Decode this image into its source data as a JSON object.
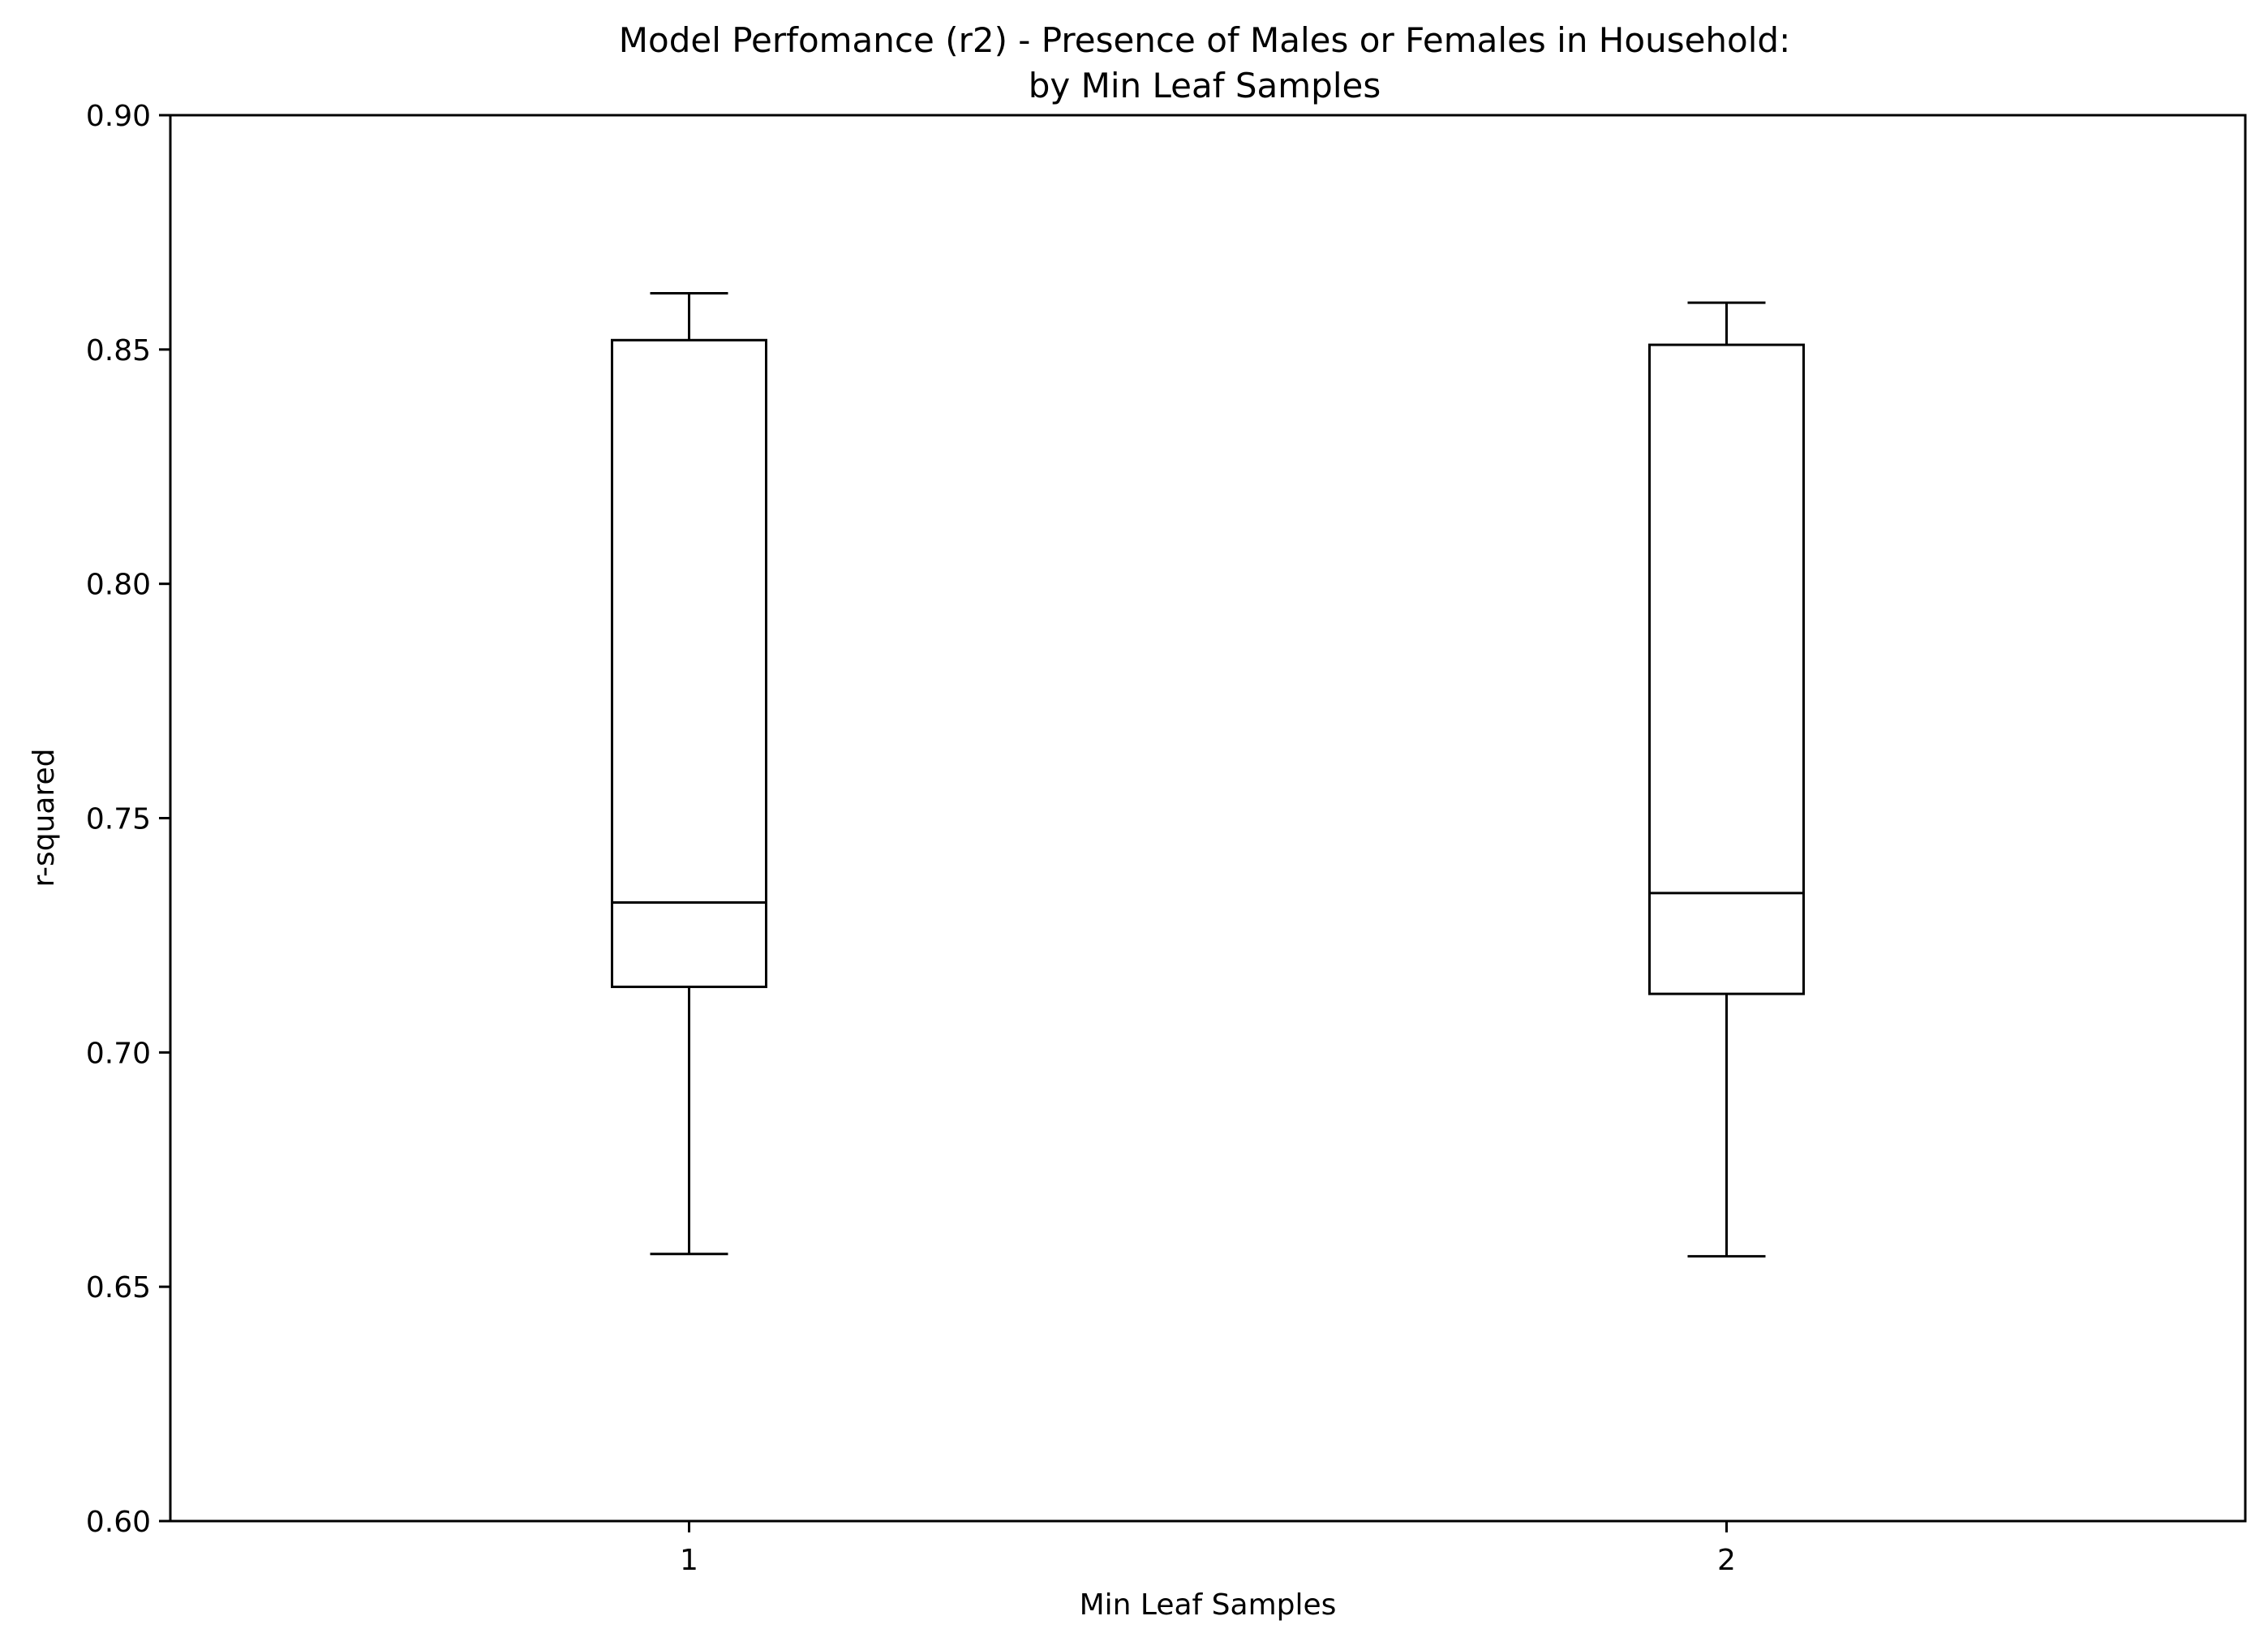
{
  "chart_data": {
    "type": "box",
    "title_line1": "Model Perfomance (r2) - Presence of Males or Females in Household:",
    "title_line2": "by Min Leaf Samples",
    "xlabel": "Min Leaf Samples",
    "ylabel": "r-squared",
    "ylim": [
      0.6,
      0.9
    ],
    "yticks": [
      0.6,
      0.65,
      0.7,
      0.75,
      0.8,
      0.85,
      0.9
    ],
    "ytick_labels": [
      "0.60",
      "0.65",
      "0.70",
      "0.75",
      "0.80",
      "0.85",
      "0.90"
    ],
    "categories": [
      "1",
      "2"
    ],
    "boxes": [
      {
        "category": "1",
        "whisker_low": 0.657,
        "q1": 0.714,
        "median": 0.732,
        "q3": 0.852,
        "whisker_high": 0.862
      },
      {
        "category": "2",
        "whisker_low": 0.6565,
        "q1": 0.7125,
        "median": 0.734,
        "q3": 0.851,
        "whisker_high": 0.86
      }
    ],
    "grid": false,
    "legend": "none",
    "colors": {
      "line": "#000000",
      "background": "#ffffff"
    }
  }
}
